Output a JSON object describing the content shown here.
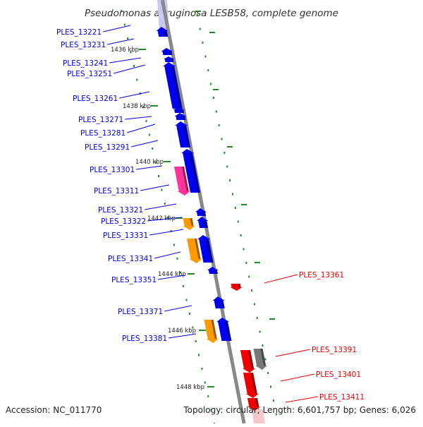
{
  "title": "Pseudomonas aeruginosa LESB58, complete genome",
  "accession_text": "Accession: NC_011770",
  "topology_text": "Topology: circular; Length: 6,601,757 bp; Genes: 6,026",
  "colors": {
    "forward_strand": "#0000ee",
    "reverse_strand": "#ee0000",
    "rna": "#ff3399",
    "pseudo": "#ff9900",
    "other": "#777777",
    "axis": "#888888",
    "ticks": "#228b22"
  },
  "kbp_markers": [
    "1436 kbp",
    "1438 kbp",
    "1440 kbp",
    "1442 kbp",
    "1444 kbp",
    "1446 kbp",
    "1448 kbp"
  ],
  "left_genes": [
    "PLES_13221",
    "PLES_13231",
    "PLES_13241",
    "PLES_13251",
    "PLES_13261",
    "PLES_13271",
    "PLES_13281",
    "PLES_13291",
    "PLES_13301",
    "PLES_13311",
    "PLES_13321",
    "PLES_13322",
    "PLES_13331",
    "PLES_13341",
    "PLES_13351",
    "PLES_13371",
    "PLES_13381"
  ],
  "right_genes": [
    "PLES_13361",
    "PLES_13391",
    "PLES_13401",
    "PLES_13411"
  ]
}
